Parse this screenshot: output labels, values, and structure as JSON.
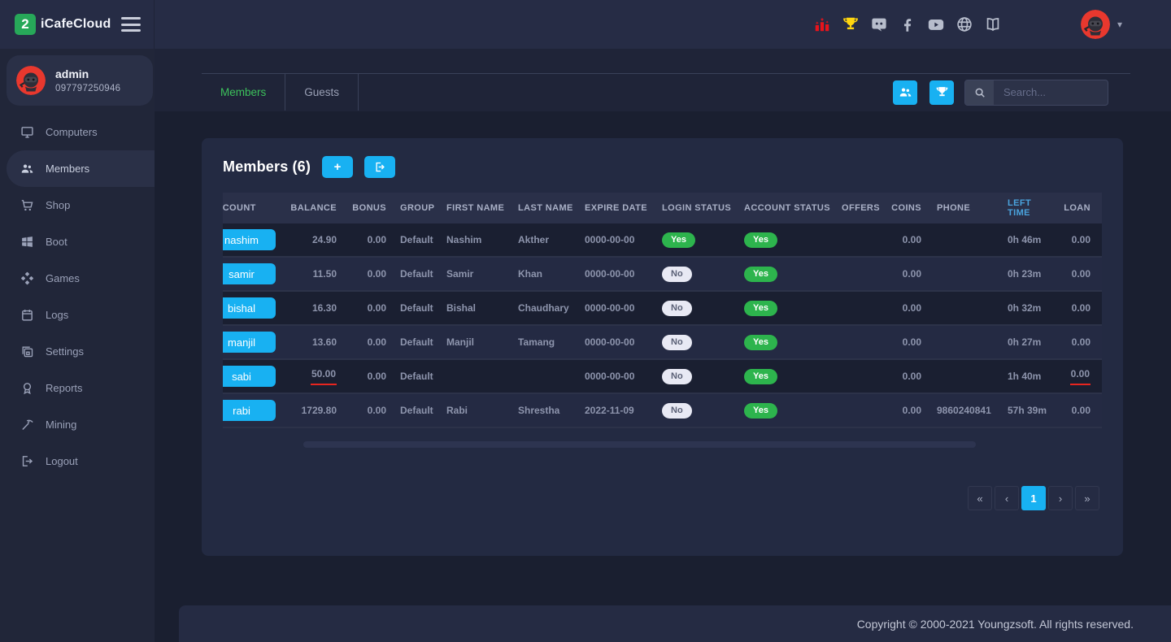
{
  "brand": {
    "name": "iCafeCloud",
    "logo_glyph": "2"
  },
  "navbar": {
    "icons": [
      {
        "name": "ranking-icon",
        "color": "#e8131b"
      },
      {
        "name": "trophy-icon",
        "color": "#ffd60e"
      },
      {
        "name": "discord-icon",
        "color": "#b7bdcc"
      },
      {
        "name": "facebook-icon",
        "color": "#b7bdcc"
      },
      {
        "name": "youtube-icon",
        "color": "#b7bdcc"
      },
      {
        "name": "globe-icon",
        "color": "#b7bdcc"
      },
      {
        "name": "book-icon",
        "color": "#b7bdcc"
      }
    ]
  },
  "user": {
    "name": "admin",
    "phone": "097797250946"
  },
  "sidebar": {
    "items": [
      {
        "label": "Computers",
        "icon": "monitor-icon",
        "active": false
      },
      {
        "label": "Members",
        "icon": "members-icon",
        "active": true
      },
      {
        "label": "Shop",
        "icon": "cart-icon",
        "active": false
      },
      {
        "label": "Boot",
        "icon": "windows-icon",
        "active": false
      },
      {
        "label": "Games",
        "icon": "games-icon",
        "active": false
      },
      {
        "label": "Logs",
        "icon": "calendar-icon",
        "active": false
      },
      {
        "label": "Settings",
        "icon": "layers-icon",
        "active": false
      },
      {
        "label": "Reports",
        "icon": "report-icon",
        "active": false
      },
      {
        "label": "Mining",
        "icon": "pickaxe-icon",
        "active": false
      },
      {
        "label": "Logout",
        "icon": "logout-icon",
        "active": false
      }
    ]
  },
  "toolbar": {
    "tabs": [
      {
        "label": "Members",
        "active": true
      },
      {
        "label": "Guests",
        "active": false
      }
    ],
    "buttons": [
      {
        "name": "members-group-button",
        "icon": "members-icon"
      },
      {
        "name": "trophy-button",
        "icon": "trophy-small-icon"
      }
    ],
    "search": {
      "placeholder": "Search..."
    }
  },
  "members_panel": {
    "title": "Members",
    "count_label": "(6)",
    "columns": [
      "ACCOUNT",
      "BALANCE",
      "BONUS",
      "GROUP",
      "FIRST NAME",
      "LAST NAME",
      "EXPIRE DATE",
      "LOGIN STATUS",
      "ACCOUNT STATUS",
      "OFFERS",
      "COINS",
      "PHONE",
      "LEFT TIME",
      "LOAN"
    ],
    "rows": [
      {
        "account": "nashim",
        "balance": "24.90",
        "bonus": "0.00",
        "group": "Default",
        "first_name": "Nashim",
        "last_name": "Akther",
        "expire_date": "0000-00-00",
        "login_status": "Yes",
        "account_status": "Yes",
        "offers": "",
        "coins": "0.00",
        "phone": "",
        "left_time": "0h 46m",
        "loan": "0.00",
        "marked": []
      },
      {
        "account": "samir",
        "balance": "11.50",
        "bonus": "0.00",
        "group": "Default",
        "first_name": "Samir",
        "last_name": "Khan",
        "expire_date": "0000-00-00",
        "login_status": "No",
        "account_status": "Yes",
        "offers": "",
        "coins": "0.00",
        "phone": "",
        "left_time": "0h 23m",
        "loan": "0.00",
        "marked": []
      },
      {
        "account": "bishal",
        "balance": "16.30",
        "bonus": "0.00",
        "group": "Default",
        "first_name": "Bishal",
        "last_name": "Chaudhary",
        "expire_date": "0000-00-00",
        "login_status": "No",
        "account_status": "Yes",
        "offers": "",
        "coins": "0.00",
        "phone": "",
        "left_time": "0h 32m",
        "loan": "0.00",
        "marked": []
      },
      {
        "account": "manjil",
        "balance": "13.60",
        "bonus": "0.00",
        "group": "Default",
        "first_name": "Manjil",
        "last_name": "Tamang",
        "expire_date": "0000-00-00",
        "login_status": "No",
        "account_status": "Yes",
        "offers": "",
        "coins": "0.00",
        "phone": "",
        "left_time": "0h 27m",
        "loan": "0.00",
        "marked": []
      },
      {
        "account": "sabi",
        "balance": "50.00",
        "bonus": "0.00",
        "group": "Default",
        "first_name": "",
        "last_name": "",
        "expire_date": "0000-00-00",
        "login_status": "No",
        "account_status": "Yes",
        "offers": "",
        "coins": "0.00",
        "phone": "",
        "left_time": "1h 40m",
        "loan": "0.00",
        "marked": [
          "balance",
          "loan"
        ]
      },
      {
        "account": "rabi",
        "balance": "1729.80",
        "bonus": "0.00",
        "group": "Default",
        "first_name": "Rabi",
        "last_name": "Shrestha",
        "expire_date": "2022-11-09",
        "login_status": "No",
        "account_status": "Yes",
        "offers": "",
        "coins": "0.00",
        "phone": "9860240841",
        "left_time": "57h 39m",
        "loan": "0.00",
        "marked": []
      }
    ]
  },
  "pagination": {
    "buttons": [
      "«",
      "‹",
      "1",
      "›",
      "»"
    ],
    "active_index": 2
  },
  "footer": {
    "copyright": "Copyright © 2000-2021 Youngzsoft. All rights reserved."
  },
  "colors": {
    "accent_blue": "#18b1f2",
    "green": "#2db44d",
    "tab_green": "#3cc15b",
    "underline_red": "#e8251f",
    "left_time_blue": "#4aa3dd",
    "avatar_red": "#e8382e"
  }
}
